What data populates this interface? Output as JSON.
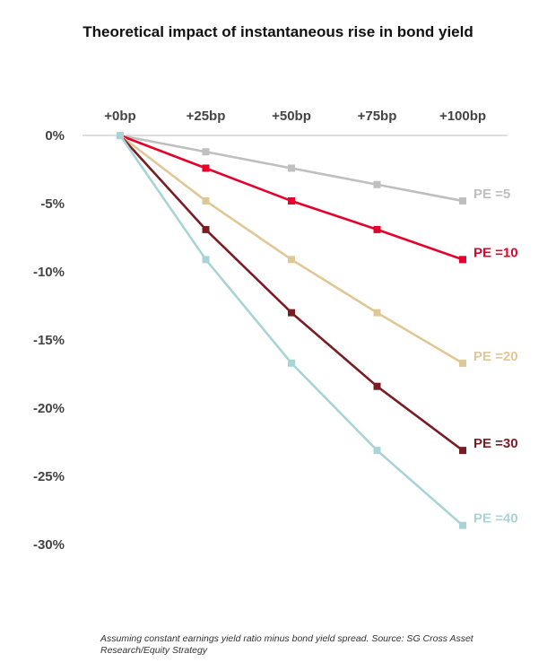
{
  "title": "Theoretical impact of instantaneous rise in bond yield",
  "footnote": "Assuming constant earnings yield ratio minus bond yield spread. Source: SG Cross Asset Research/Equity Strategy",
  "chart_data": {
    "type": "line",
    "title": "Theoretical impact of instantaneous rise in bond yield",
    "xlabel": "",
    "ylabel": "",
    "categories": [
      "+0bp",
      "+25bp",
      "+50bp",
      "+75bp",
      "+100bp"
    ],
    "y_ticks": [
      "0%",
      "-5%",
      "-10%",
      "-15%",
      "-20%",
      "-25%",
      "-30%"
    ],
    "y_tick_values": [
      0,
      -5,
      -10,
      -15,
      -20,
      -25,
      -30
    ],
    "ylim": [
      -30,
      0
    ],
    "x_axis_position": "top",
    "grid": false,
    "legend": "direct labels at line ends",
    "series": [
      {
        "name": "PE =5",
        "color": "#bfbfbf",
        "values": [
          0,
          -1.2,
          -2.4,
          -3.6,
          -4.8
        ]
      },
      {
        "name": "PE =10",
        "color": "#e4002b",
        "values": [
          0,
          -2.4,
          -4.8,
          -6.9,
          -9.1
        ]
      },
      {
        "name": "PE =20",
        "color": "#e0c896",
        "values": [
          0,
          -4.8,
          -9.1,
          -13.0,
          -16.7
        ]
      },
      {
        "name": "PE =30",
        "color": "#7b1c24",
        "values": [
          0,
          -6.9,
          -13.0,
          -18.4,
          -23.1
        ]
      },
      {
        "name": "PE =40",
        "color": "#a8d4d8",
        "values": [
          0,
          -9.1,
          -16.7,
          -23.1,
          -28.6
        ]
      }
    ]
  }
}
